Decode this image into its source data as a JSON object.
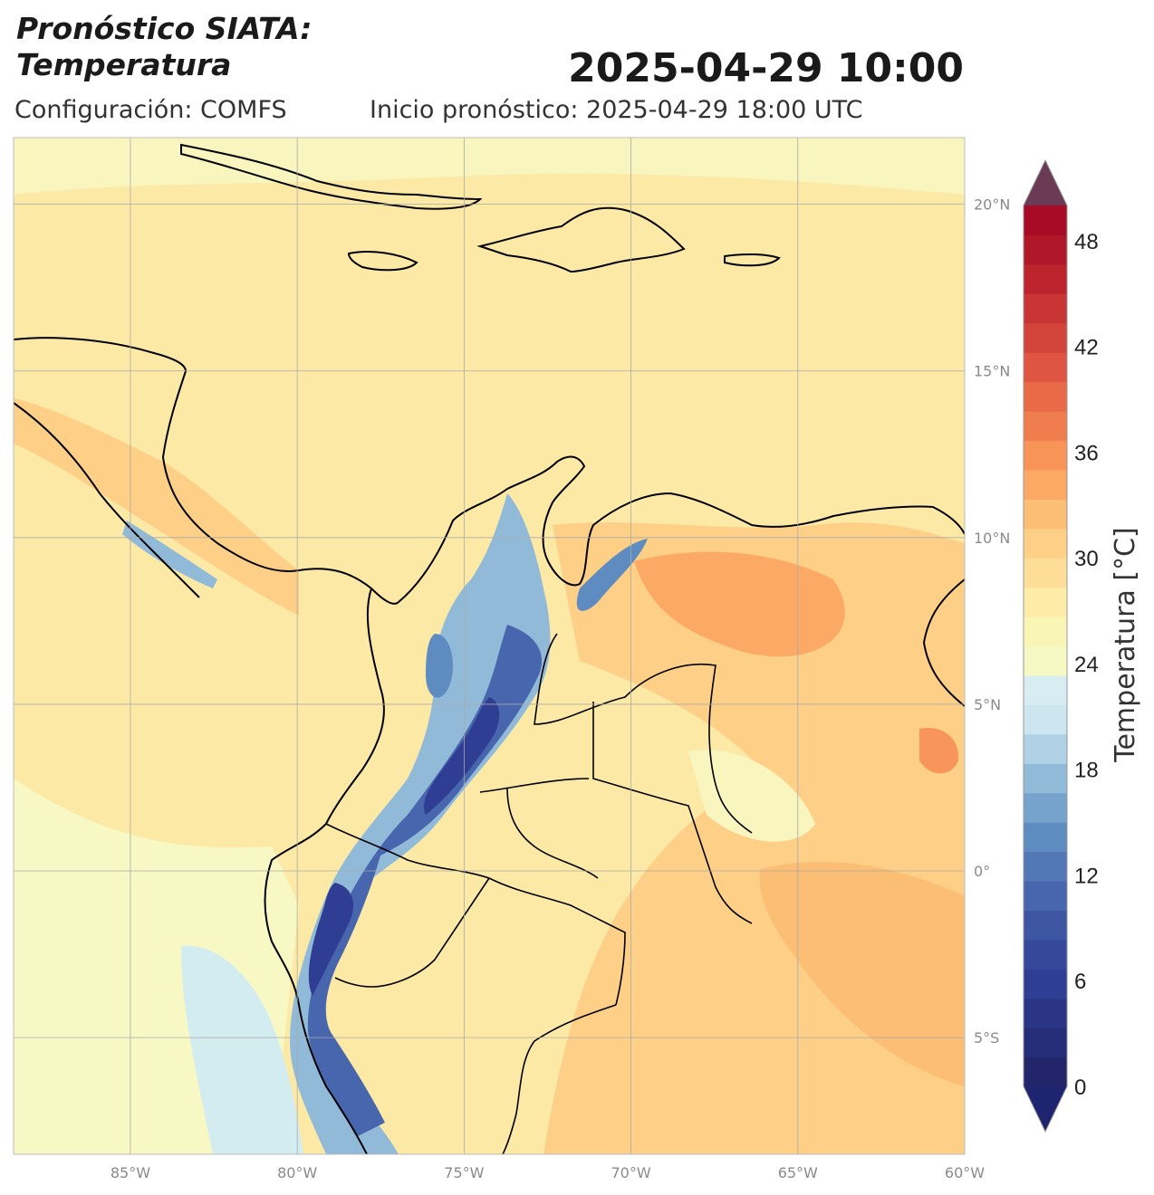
{
  "header": {
    "title_line1": "Pronóstico SIATA:",
    "title_line2": "Temperatura",
    "datetime": "2025-04-29 10:00",
    "config": "Configuración: COMFS",
    "forecast_start": "Inicio pronóstico: 2025-04-29 18:00 UTC"
  },
  "map": {
    "lon_range": [
      -88.5,
      -60
    ],
    "lat_range": [
      -8.5,
      22
    ],
    "lon_ticks": [
      {
        "value": -85,
        "label": "85°W"
      },
      {
        "value": -80,
        "label": "80°W"
      },
      {
        "value": -75,
        "label": "75°W"
      },
      {
        "value": -70,
        "label": "70°W"
      },
      {
        "value": -65,
        "label": "65°W"
      },
      {
        "value": -60,
        "label": "60°W"
      }
    ],
    "lat_ticks": [
      {
        "value": 20,
        "label": "20°N"
      },
      {
        "value": 15,
        "label": "15°N"
      },
      {
        "value": 10,
        "label": "10°N"
      },
      {
        "value": 5,
        "label": "5°N"
      },
      {
        "value": 0,
        "label": "0°"
      },
      {
        "value": -5,
        "label": "5°S"
      }
    ],
    "grid": true
  },
  "colorbar": {
    "label": "Temperatura [°C]",
    "min": 0,
    "max": 50,
    "step": 2,
    "ticks": [
      0,
      6,
      12,
      18,
      24,
      30,
      36,
      42,
      48
    ],
    "extend": "both",
    "colors": [
      "#23256b",
      "#262d78",
      "#2b3585",
      "#2f3d92",
      "#36489a",
      "#3e55a3",
      "#4766ad",
      "#5279b6",
      "#5f8cc0",
      "#76a3cb",
      "#91bad9",
      "#afd0e5",
      "#cde5ee",
      "#d8edf1",
      "#f6f9c4",
      "#f9f6b5",
      "#fdeba8",
      "#fedd98",
      "#fdcf87",
      "#fcbd75",
      "#fba965",
      "#f89458",
      "#f07d4e",
      "#e86a47",
      "#de5641",
      "#d3443a",
      "#c93434",
      "#bd242e",
      "#b01728",
      "#a70b25"
    ],
    "over_color": "#6b3a55",
    "under_color": "#1f2470"
  }
}
